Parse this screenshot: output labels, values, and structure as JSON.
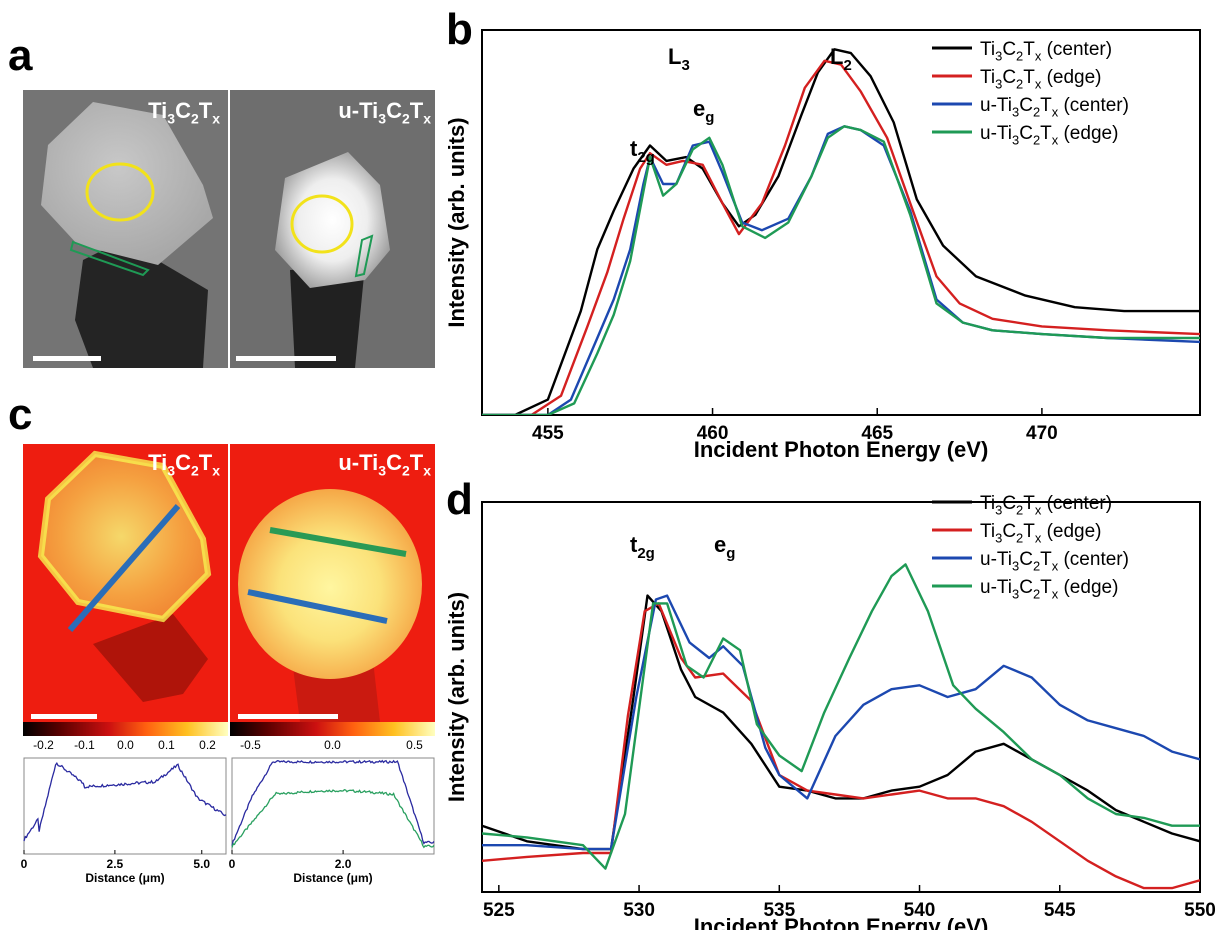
{
  "panel_labels": {
    "a": "a",
    "b": "b",
    "c": "c",
    "d": "d"
  },
  "panel_a": {
    "left_title": "Ti3C2Tx",
    "right_title": "u-Ti3C2Tx"
  },
  "panel_c": {
    "left_title": "Ti3C2Tx",
    "right_title": "u-Ti3C2Tx",
    "left_colorbar_ticks": [
      "-0.2",
      "-0.1",
      "0.0",
      "0.1",
      "0.2"
    ],
    "right_colorbar_ticks": [
      "-0.5",
      "0.0",
      "0.5"
    ],
    "left_profile": {
      "xlabel": "Distance (μm)",
      "ticks": [
        "0",
        "2.5",
        "5.0"
      ]
    },
    "right_profile": {
      "xlabel": "Distance (μm)",
      "ticks": [
        "0",
        "2.0"
      ]
    }
  },
  "colors": {
    "black": "#000000",
    "red": "#d42020",
    "blue": "#1c48b0",
    "green": "#1f9a55",
    "yellow": "#f2e21a",
    "profile_blue": "#2a2aa0",
    "profile_green": "#2aa060",
    "line_blue": "#2a6db8",
    "line_green": "#2a9a55"
  },
  "chart_data": [
    {
      "type": "line",
      "panel": "b",
      "xlabel": "Incident Photon Energy (eV)",
      "ylabel": "Intensity (arb. units)",
      "xlim": [
        453,
        474.8
      ],
      "ylim": [
        0,
        1
      ],
      "xticks": [
        455,
        460,
        465,
        470
      ],
      "annotations": [
        {
          "text": "L3",
          "x": 459.3,
          "y": 1.06
        },
        {
          "text": "L2",
          "x": 463.9,
          "y": 1.06
        },
        {
          "text": "t2g",
          "x": 457.9,
          "y": 0.82
        },
        {
          "text": "eg",
          "x": 459.7,
          "y": 0.94
        }
      ],
      "series": [
        {
          "name": "Ti3C2Tx (center)",
          "color": "#000000",
          "points": [
            [
              453,
              0.0
            ],
            [
              454,
              0.0
            ],
            [
              455,
              0.04
            ],
            [
              456,
              0.27
            ],
            [
              456.5,
              0.43
            ],
            [
              457,
              0.53
            ],
            [
              457.6,
              0.64
            ],
            [
              458.1,
              0.7
            ],
            [
              458.6,
              0.66
            ],
            [
              459.2,
              0.67
            ],
            [
              459.7,
              0.64
            ],
            [
              460.3,
              0.55
            ],
            [
              460.8,
              0.49
            ],
            [
              461.3,
              0.52
            ],
            [
              462,
              0.62
            ],
            [
              462.7,
              0.78
            ],
            [
              463.2,
              0.89
            ],
            [
              463.7,
              0.95
            ],
            [
              464.2,
              0.94
            ],
            [
              464.8,
              0.88
            ],
            [
              465.5,
              0.76
            ],
            [
              466.2,
              0.56
            ],
            [
              467,
              0.44
            ],
            [
              468,
              0.36
            ],
            [
              469.5,
              0.31
            ],
            [
              471,
              0.28
            ],
            [
              472.5,
              0.27
            ],
            [
              474.8,
              0.27
            ]
          ]
        },
        {
          "name": "Ti3C2Tx (edge)",
          "color": "#d42020",
          "points": [
            [
              453,
              0.0
            ],
            [
              454.5,
              0.0
            ],
            [
              455.4,
              0.05
            ],
            [
              456.2,
              0.23
            ],
            [
              456.8,
              0.37
            ],
            [
              457.3,
              0.51
            ],
            [
              457.8,
              0.64
            ],
            [
              458.1,
              0.68
            ],
            [
              458.6,
              0.65
            ],
            [
              459.1,
              0.66
            ],
            [
              459.7,
              0.65
            ],
            [
              460.3,
              0.55
            ],
            [
              460.8,
              0.47
            ],
            [
              461.5,
              0.55
            ],
            [
              462.2,
              0.7
            ],
            [
              462.8,
              0.85
            ],
            [
              463.4,
              0.92
            ],
            [
              463.9,
              0.91
            ],
            [
              464.5,
              0.84
            ],
            [
              465.3,
              0.72
            ],
            [
              466,
              0.55
            ],
            [
              466.8,
              0.36
            ],
            [
              467.5,
              0.29
            ],
            [
              468.5,
              0.25
            ],
            [
              470,
              0.23
            ],
            [
              472,
              0.22
            ],
            [
              474.8,
              0.21
            ]
          ]
        },
        {
          "name": "u-Ti3C2Tx (center)",
          "color": "#1c48b0",
          "points": [
            [
              453,
              0.0
            ],
            [
              455,
              0.0
            ],
            [
              455.7,
              0.04
            ],
            [
              456.5,
              0.2
            ],
            [
              457,
              0.3
            ],
            [
              457.5,
              0.43
            ],
            [
              457.9,
              0.6
            ],
            [
              458.1,
              0.67
            ],
            [
              458.5,
              0.6
            ],
            [
              458.9,
              0.6
            ],
            [
              459.4,
              0.7
            ],
            [
              459.9,
              0.71
            ],
            [
              460.3,
              0.63
            ],
            [
              460.9,
              0.5
            ],
            [
              461.5,
              0.48
            ],
            [
              462.3,
              0.51
            ],
            [
              463,
              0.62
            ],
            [
              463.5,
              0.73
            ],
            [
              464,
              0.75
            ],
            [
              464.5,
              0.74
            ],
            [
              465.2,
              0.7
            ],
            [
              466,
              0.53
            ],
            [
              466.8,
              0.3
            ],
            [
              467.6,
              0.24
            ],
            [
              468.5,
              0.22
            ],
            [
              470,
              0.21
            ],
            [
              472,
              0.2
            ],
            [
              474.8,
              0.19
            ]
          ]
        },
        {
          "name": "u-Ti3C2Tx (edge)",
          "color": "#1f9a55",
          "points": [
            [
              453,
              0.0
            ],
            [
              455,
              0.0
            ],
            [
              455.8,
              0.03
            ],
            [
              456.5,
              0.16
            ],
            [
              457,
              0.26
            ],
            [
              457.5,
              0.4
            ],
            [
              457.9,
              0.58
            ],
            [
              458.1,
              0.67
            ],
            [
              458.5,
              0.57
            ],
            [
              458.9,
              0.6
            ],
            [
              459.4,
              0.69
            ],
            [
              459.9,
              0.72
            ],
            [
              460.3,
              0.65
            ],
            [
              460.9,
              0.49
            ],
            [
              461.6,
              0.46
            ],
            [
              462.3,
              0.5
            ],
            [
              463,
              0.62
            ],
            [
              463.5,
              0.72
            ],
            [
              464,
              0.75
            ],
            [
              464.5,
              0.74
            ],
            [
              465.2,
              0.71
            ],
            [
              466,
              0.52
            ],
            [
              466.8,
              0.29
            ],
            [
              467.6,
              0.24
            ],
            [
              468.5,
              0.22
            ],
            [
              470,
              0.21
            ],
            [
              472,
              0.2
            ],
            [
              474.8,
              0.2
            ]
          ]
        }
      ],
      "legend_position": "top-right"
    },
    {
      "type": "line",
      "panel": "d",
      "xlabel": "Incident Photon Energy (eV)",
      "ylabel": "Intensity (arb. units)",
      "xlim": [
        524.4,
        550
      ],
      "ylim": [
        0,
        1
      ],
      "xticks": [
        525,
        530,
        535,
        540,
        545,
        550
      ],
      "annotations": [
        {
          "text": "t2g",
          "x": 530.4,
          "y": 0.82
        },
        {
          "text": "eg",
          "x": 533.1,
          "y": 0.72
        }
      ],
      "series": [
        {
          "name": "Ti3C2Tx (center)",
          "color": "#000000",
          "points": [
            [
              524.4,
              0.17
            ],
            [
              526,
              0.13
            ],
            [
              528,
              0.11
            ],
            [
              529,
              0.11
            ],
            [
              529.8,
              0.5
            ],
            [
              530.3,
              0.76
            ],
            [
              530.8,
              0.72
            ],
            [
              531.5,
              0.57
            ],
            [
              532,
              0.5
            ],
            [
              533,
              0.46
            ],
            [
              534,
              0.38
            ],
            [
              535,
              0.27
            ],
            [
              536,
              0.26
            ],
            [
              537,
              0.24
            ],
            [
              538,
              0.24
            ],
            [
              539,
              0.26
            ],
            [
              540,
              0.27
            ],
            [
              541,
              0.3
            ],
            [
              542,
              0.36
            ],
            [
              543,
              0.38
            ],
            [
              544,
              0.34
            ],
            [
              545,
              0.3
            ],
            [
              546,
              0.26
            ],
            [
              547,
              0.21
            ],
            [
              548,
              0.18
            ],
            [
              549,
              0.15
            ],
            [
              550,
              0.13
            ]
          ]
        },
        {
          "name": "Ti3C2Tx (edge)",
          "color": "#d42020",
          "points": [
            [
              524.4,
              0.08
            ],
            [
              526,
              0.09
            ],
            [
              528,
              0.1
            ],
            [
              529,
              0.1
            ],
            [
              529.6,
              0.45
            ],
            [
              530.2,
              0.72
            ],
            [
              530.7,
              0.74
            ],
            [
              531.5,
              0.6
            ],
            [
              532,
              0.55
            ],
            [
              533,
              0.56
            ],
            [
              534,
              0.49
            ],
            [
              535,
              0.3
            ],
            [
              536,
              0.26
            ],
            [
              537,
              0.25
            ],
            [
              538,
              0.24
            ],
            [
              539,
              0.25
            ],
            [
              540,
              0.26
            ],
            [
              541,
              0.24
            ],
            [
              542,
              0.24
            ],
            [
              543,
              0.22
            ],
            [
              544,
              0.18
            ],
            [
              545,
              0.13
            ],
            [
              546,
              0.08
            ],
            [
              547,
              0.04
            ],
            [
              548,
              0.01
            ],
            [
              549,
              0.01
            ],
            [
              550,
              0.03
            ]
          ]
        },
        {
          "name": "u-Ti3C2Tx (center)",
          "color": "#1c48b0",
          "points": [
            [
              524.4,
              0.12
            ],
            [
              526,
              0.12
            ],
            [
              528,
              0.11
            ],
            [
              529,
              0.11
            ],
            [
              529.9,
              0.5
            ],
            [
              530.6,
              0.75
            ],
            [
              531,
              0.76
            ],
            [
              531.8,
              0.64
            ],
            [
              532.5,
              0.6
            ],
            [
              533,
              0.63
            ],
            [
              533.7,
              0.58
            ],
            [
              534.5,
              0.37
            ],
            [
              535,
              0.3
            ],
            [
              536,
              0.24
            ],
            [
              537,
              0.4
            ],
            [
              538,
              0.48
            ],
            [
              539,
              0.52
            ],
            [
              540,
              0.53
            ],
            [
              541,
              0.5
            ],
            [
              542,
              0.52
            ],
            [
              543,
              0.58
            ],
            [
              544,
              0.55
            ],
            [
              545,
              0.48
            ],
            [
              546,
              0.44
            ],
            [
              547,
              0.42
            ],
            [
              548,
              0.4
            ],
            [
              549,
              0.36
            ],
            [
              550,
              0.34
            ]
          ]
        },
        {
          "name": "u-Ti3C2Tx (edge)",
          "color": "#1f9a55",
          "points": [
            [
              524.4,
              0.15
            ],
            [
              526,
              0.14
            ],
            [
              528,
              0.12
            ],
            [
              528.8,
              0.06
            ],
            [
              529.5,
              0.2
            ],
            [
              530.5,
              0.74
            ],
            [
              531,
              0.74
            ],
            [
              531.7,
              0.58
            ],
            [
              532.3,
              0.55
            ],
            [
              533,
              0.65
            ],
            [
              533.6,
              0.62
            ],
            [
              534.2,
              0.43
            ],
            [
              535,
              0.35
            ],
            [
              535.8,
              0.31
            ],
            [
              536.6,
              0.46
            ],
            [
              537.5,
              0.6
            ],
            [
              538.3,
              0.72
            ],
            [
              539,
              0.81
            ],
            [
              539.5,
              0.84
            ],
            [
              540.3,
              0.72
            ],
            [
              541.2,
              0.53
            ],
            [
              542,
              0.47
            ],
            [
              543,
              0.41
            ],
            [
              544,
              0.34
            ],
            [
              545,
              0.3
            ],
            [
              546,
              0.24
            ],
            [
              547,
              0.2
            ],
            [
              548,
              0.19
            ],
            [
              549,
              0.17
            ],
            [
              550,
              0.17
            ]
          ]
        }
      ],
      "legend_position": "top-right"
    }
  ]
}
